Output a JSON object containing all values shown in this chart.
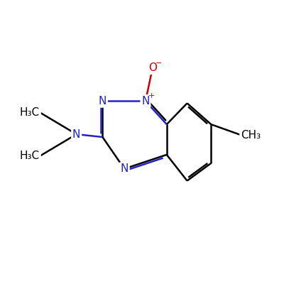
{
  "bg_color": "#ffffff",
  "bond_color": "#000000",
  "n_color": "#2222cc",
  "o_color": "#cc0000",
  "line_width": 1.8,
  "font_size_atom": 11,
  "font_size_sub": 8,
  "figsize": [
    4.0,
    4.0
  ],
  "dpi": 100,
  "xlim": [
    0,
    10
  ],
  "ylim": [
    0,
    10
  ]
}
